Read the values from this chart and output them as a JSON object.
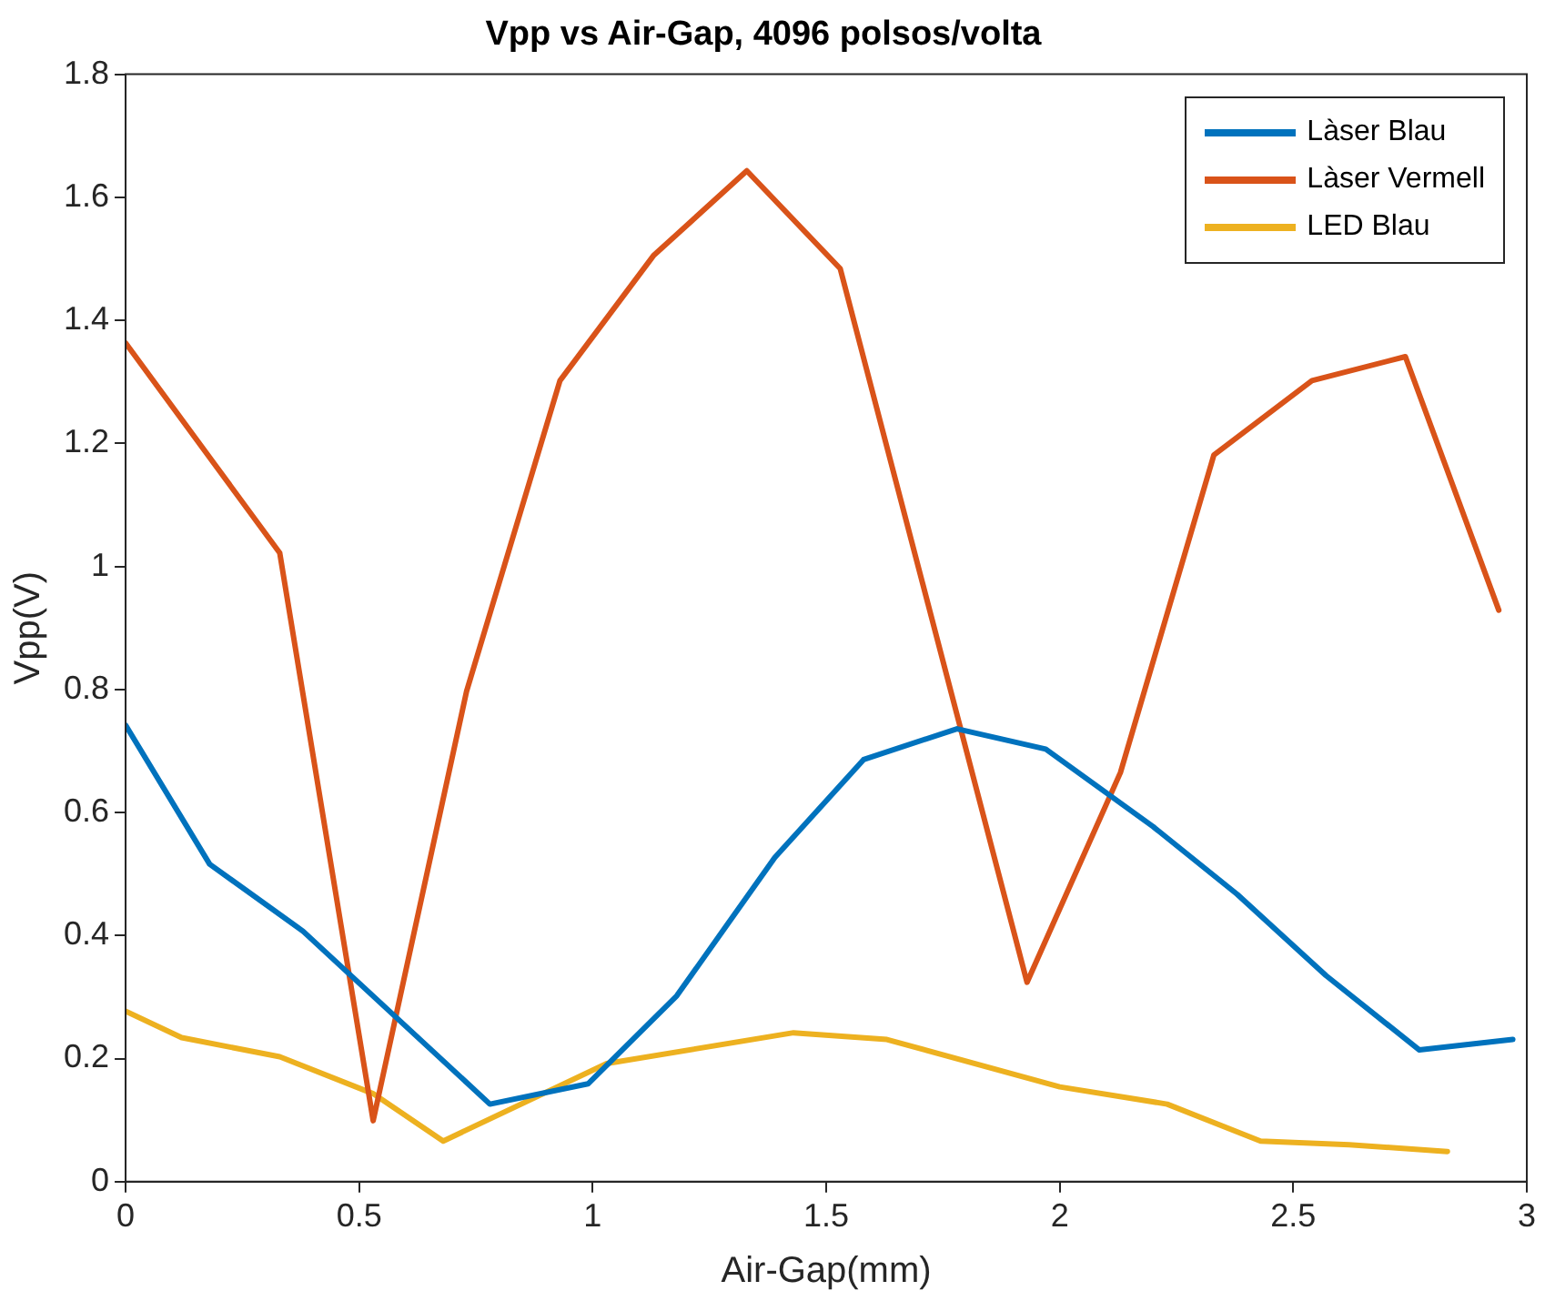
{
  "chart_data": {
    "type": "line",
    "title": "Vpp vs Air-Gap, 4096 polsos/volta",
    "xlabel": "Air-Gap(mm)",
    "ylabel": "Vpp(V)",
    "xlim": [
      0,
      3
    ],
    "ylim": [
      0,
      1.8
    ],
    "xticks": [
      0,
      0.5,
      1,
      1.5,
      2,
      2.5,
      3
    ],
    "yticks": [
      0,
      0.2,
      0.4,
      0.6,
      0.8,
      1,
      1.2,
      1.4,
      1.6,
      1.8
    ],
    "grid": false,
    "legend": "top right",
    "marker": "none",
    "line_style": "solid",
    "series": [
      {
        "name": "Làser Blau",
        "color": "#0072bd",
        "x": [
          0,
          0.18,
          0.38,
          0.78,
          0.99,
          1.18,
          1.39,
          1.58,
          1.78,
          1.97,
          2.2,
          2.38,
          2.57,
          2.77,
          2.97
        ],
        "values": [
          0.742,
          0.516,
          0.407,
          0.126,
          0.159,
          0.302,
          0.527,
          0.686,
          0.736,
          0.703,
          0.577,
          0.467,
          0.335,
          0.214,
          0.231
        ]
      },
      {
        "name": "Làser Vermell",
        "color": "#d95319",
        "x": [
          0,
          0.33,
          0.53,
          0.73,
          0.93,
          1.13,
          1.33,
          1.53,
          1.93,
          2.13,
          2.33,
          2.54,
          2.74,
          2.94
        ],
        "values": [
          1.363,
          1.022,
          0.099,
          0.797,
          1.302,
          1.505,
          1.643,
          1.484,
          0.324,
          0.665,
          1.181,
          1.302,
          1.341,
          0.929
        ]
      },
      {
        "name": "LED Blau",
        "color": "#edb120",
        "x": [
          0,
          0.12,
          0.33,
          0.53,
          0.68,
          1.03,
          1.43,
          1.63,
          2.0,
          2.23,
          2.43,
          2.62,
          2.83
        ],
        "values": [
          0.277,
          0.234,
          0.203,
          0.143,
          0.066,
          0.192,
          0.242,
          0.231,
          0.154,
          0.126,
          0.066,
          0.06,
          0.049
        ]
      }
    ]
  }
}
